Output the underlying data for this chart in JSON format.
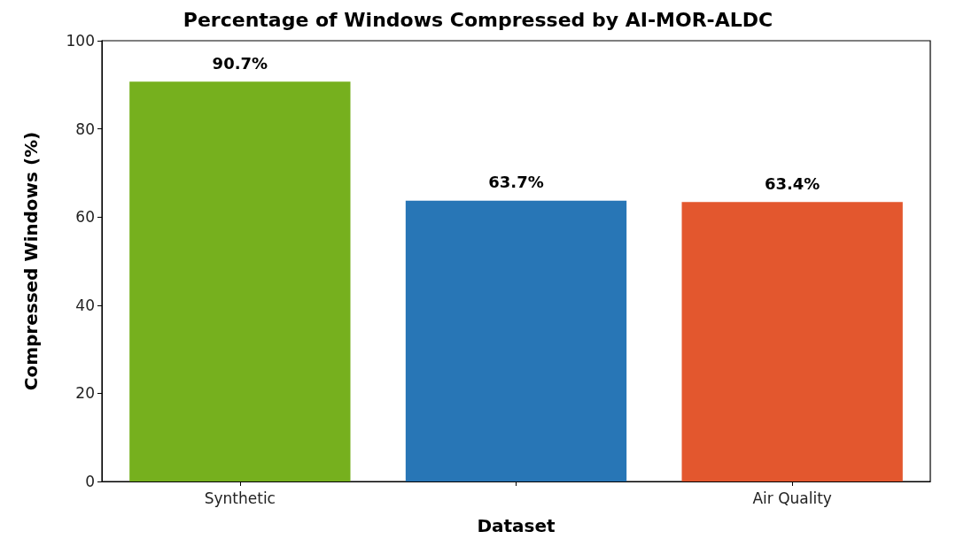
{
  "chart_data": {
    "type": "bar",
    "title": "Percentage of Windows Compressed by AI-MOR-ALDC",
    "xlabel": "Dataset",
    "ylabel": "Compressed Windows (%)",
    "categories": [
      "Synthetic",
      null,
      "Air Quality"
    ],
    "values": [
      90.7,
      63.7,
      63.4
    ],
    "colors": [
      "#76b01e",
      "#2876b6",
      "#e3572e"
    ],
    "value_labels": [
      "90.7%",
      "63.7%",
      "63.4%"
    ],
    "ylim": [
      0,
      100
    ],
    "yticks": [
      0,
      20,
      40,
      60,
      80,
      100
    ],
    "grid": false
  }
}
